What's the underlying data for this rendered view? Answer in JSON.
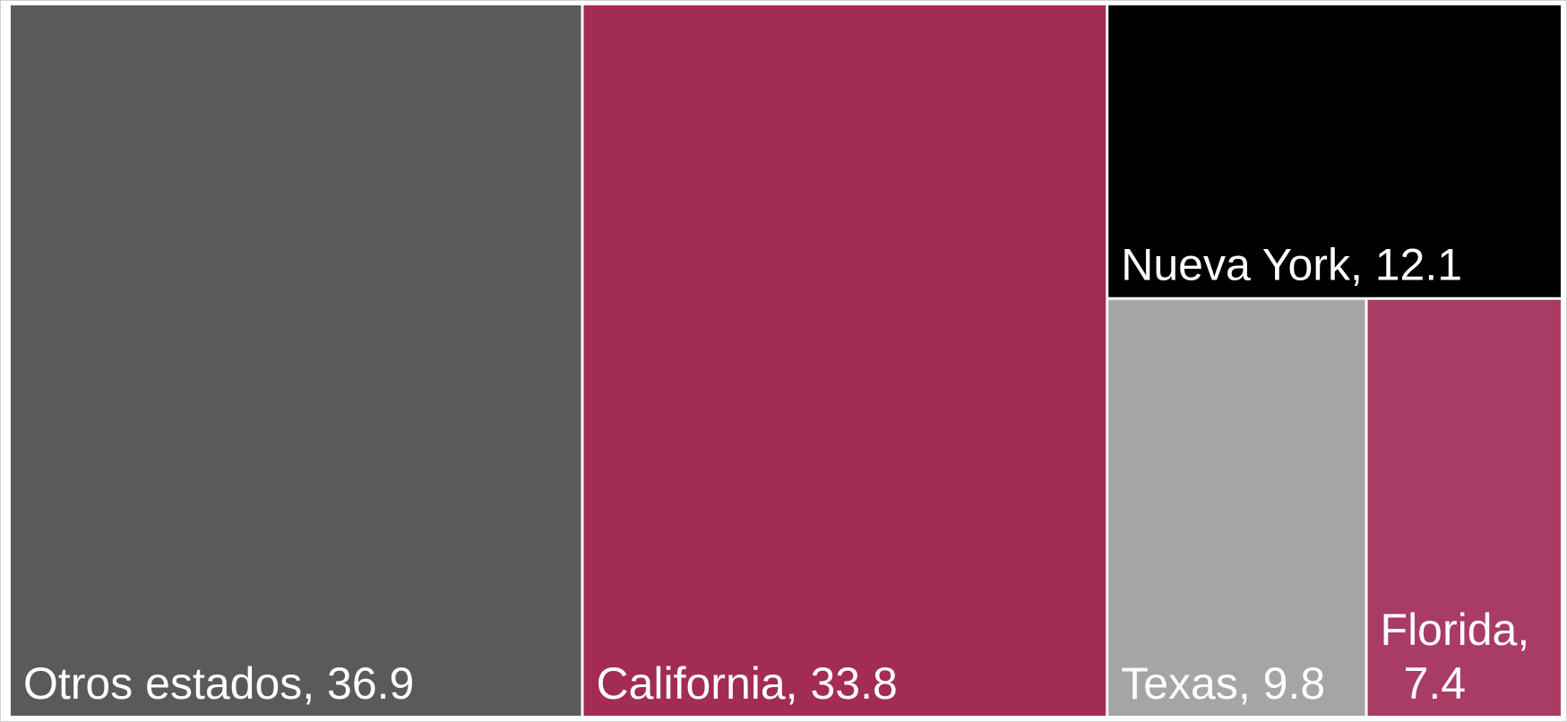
{
  "chart_data": {
    "type": "treemap",
    "categories": [
      "Otros estados",
      "California",
      "Nueva York",
      "Texas",
      "Florida"
    ],
    "values": [
      36.9,
      33.8,
      12.1,
      9.8,
      7.4
    ],
    "value_labels": [
      "Otros estados, 36.9",
      "California, 33.8",
      "Nueva York, 12.1",
      "Texas, 9.8",
      "Florida, 7.4"
    ],
    "colors": [
      "#5a5a5a",
      "#a22c52",
      "#000000",
      "#a5a5a5",
      "#a83c64"
    ]
  }
}
